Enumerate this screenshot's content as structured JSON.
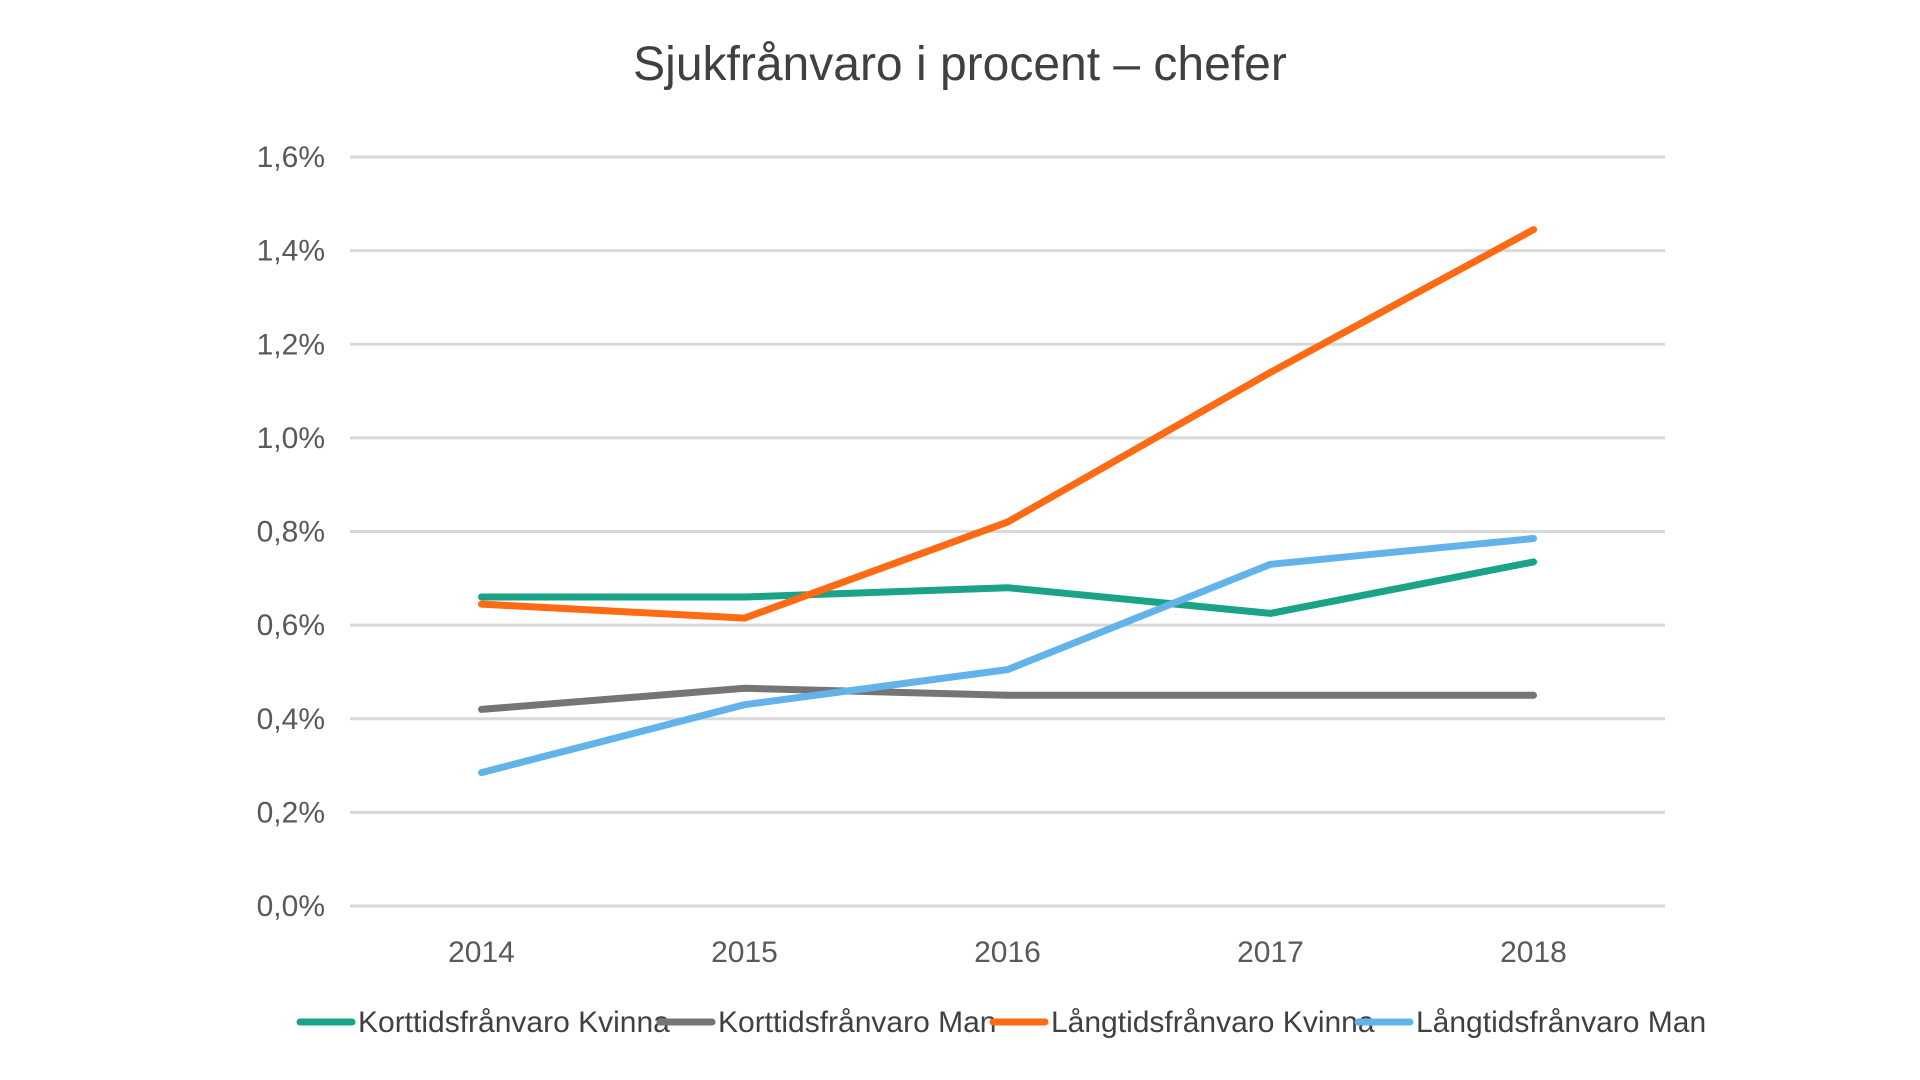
{
  "chart_data": {
    "type": "line",
    "title": "Sjukfrånvaro i procent – chefer",
    "xlabel": "",
    "ylabel": "",
    "categories": [
      "2014",
      "2015",
      "2016",
      "2017",
      "2018"
    ],
    "y_ticks": [
      "0,0%",
      "0,2%",
      "0,4%",
      "0,6%",
      "0,8%",
      "1,0%",
      "1,2%",
      "1,4%",
      "1,6%"
    ],
    "ylim": [
      0,
      1.6
    ],
    "grid": true,
    "legend_position": "bottom",
    "series": [
      {
        "name": "Korttidsfrånvaro Kvinna",
        "color": "#1AA386",
        "values": [
          0.66,
          0.66,
          0.68,
          0.625,
          0.735
        ]
      },
      {
        "name": "Korttidsfrånvaro Man",
        "color": "#757575",
        "values": [
          0.42,
          0.465,
          0.45,
          0.45,
          0.45
        ]
      },
      {
        "name": "Långtidsfrånvaro Kvinna",
        "color": "#FF6A13",
        "values": [
          0.645,
          0.615,
          0.82,
          1.14,
          1.445
        ]
      },
      {
        "name": "Långtidsfrånvaro Man",
        "color": "#63B3EB",
        "values": [
          0.285,
          0.43,
          0.505,
          0.73,
          0.785
        ]
      }
    ]
  }
}
